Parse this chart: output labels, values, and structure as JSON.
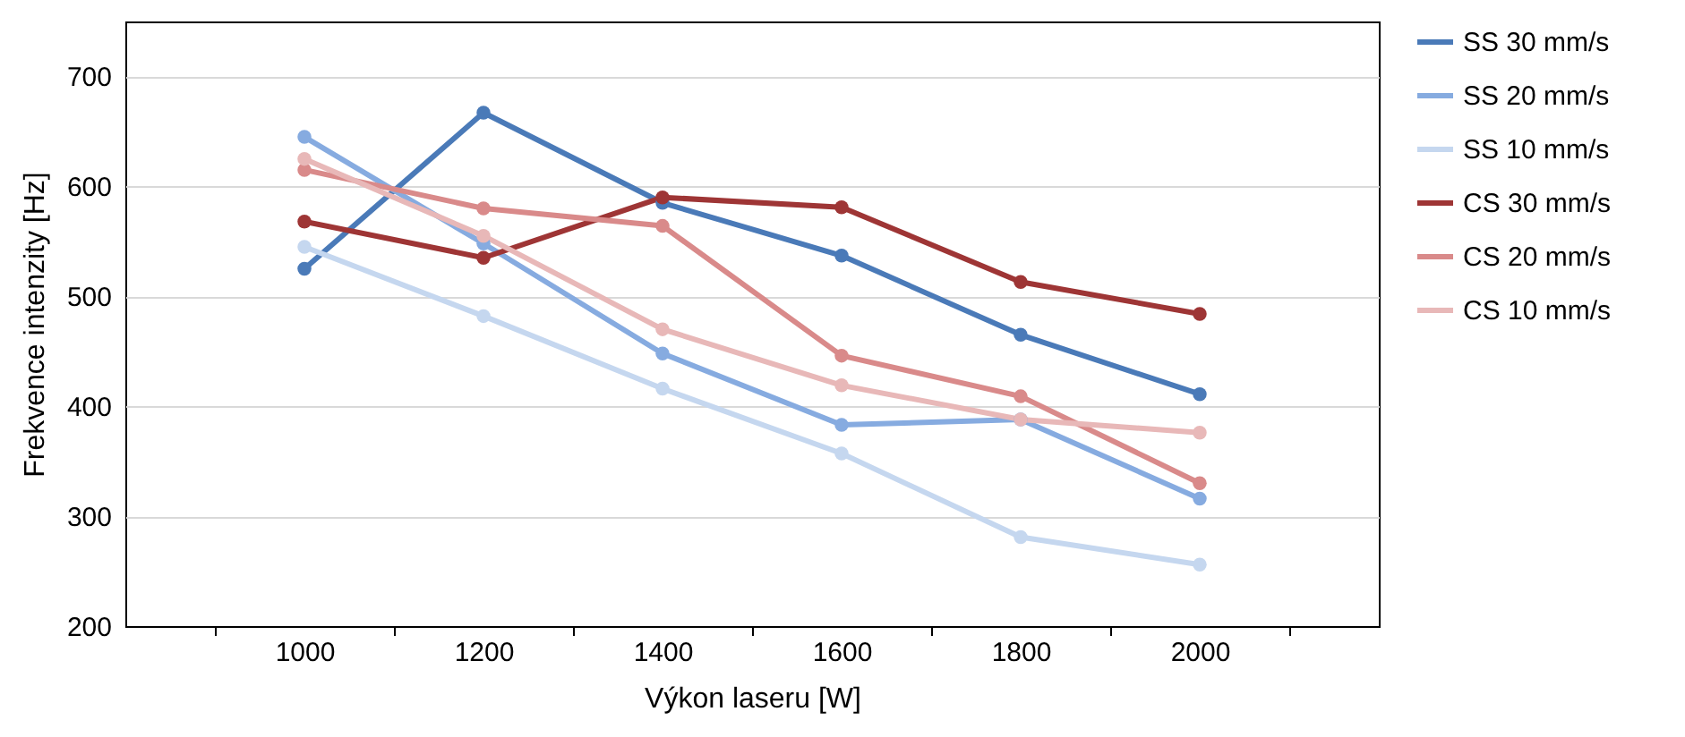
{
  "chart_data": {
    "type": "line",
    "xlabel": "Výkon laseru [W]",
    "ylabel": "Frekvence intenzity [Hz]",
    "categories": [
      "1000",
      "1200",
      "1400",
      "1600",
      "1800",
      "2000"
    ],
    "series": [
      {
        "name": "SS 30 mm/s",
        "color": "#4a7ab8",
        "values": [
          525,
          667,
          585,
          537,
          465,
          411
        ]
      },
      {
        "name": "SS 20 mm/s",
        "color": "#86abe0",
        "values": [
          645,
          548,
          448,
          383,
          388,
          316
        ]
      },
      {
        "name": "SS 10 mm/s",
        "color": "#c5d7ef",
        "values": [
          545,
          482,
          416,
          357,
          281,
          256
        ]
      },
      {
        "name": "CS 30 mm/s",
        "color": "#9e3535",
        "values": [
          568,
          535,
          590,
          581,
          513,
          484
        ]
      },
      {
        "name": "CS 20 mm/s",
        "color": "#d98a8a",
        "values": [
          615,
          580,
          564,
          446,
          409,
          330
        ]
      },
      {
        "name": "CS 10 mm/s",
        "color": "#e8b8b8",
        "values": [
          625,
          555,
          470,
          419,
          388,
          376
        ]
      }
    ],
    "ylim": [
      200,
      750
    ],
    "yticks": [
      200,
      300,
      400,
      500,
      600,
      700
    ],
    "grid": "y",
    "legend": "right",
    "marker": "circle",
    "line_style": "solid"
  }
}
